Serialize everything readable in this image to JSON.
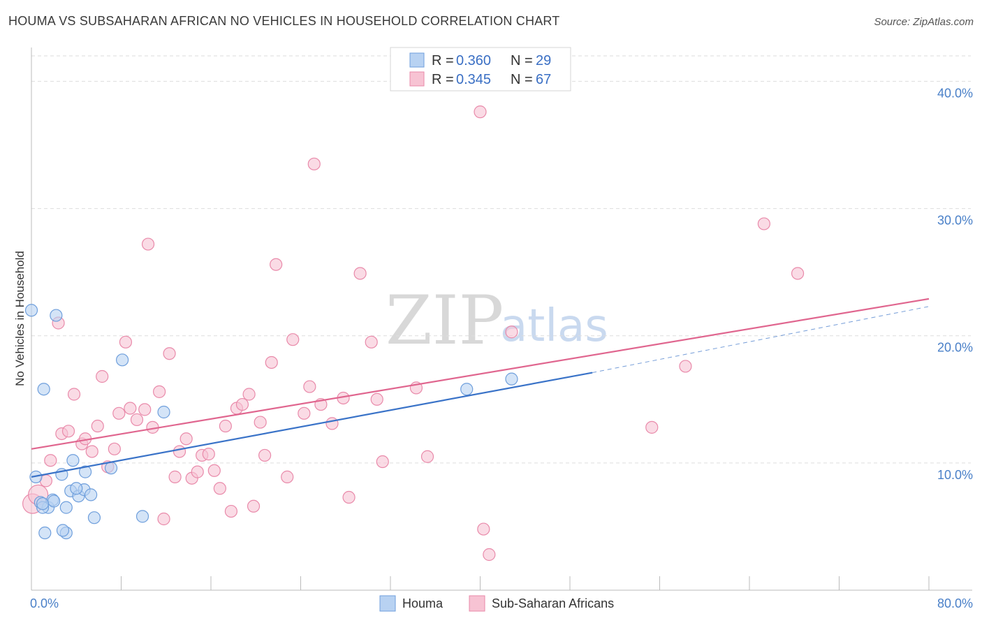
{
  "title": "HOUMA VS SUBSAHARAN AFRICAN NO VEHICLES IN HOUSEHOLD CORRELATION CHART",
  "source": "Source: ZipAtlas.com",
  "watermark": {
    "zip": "ZIP",
    "atlas": "atlas"
  },
  "colors": {
    "houma_fill": "#b8d2f2",
    "houma_stroke": "#6f9fdc",
    "houma_line": "#3a73c8",
    "ssa_fill": "#f7c3d3",
    "ssa_stroke": "#e98aaa",
    "ssa_line": "#e0668f",
    "grid": "#dddddd",
    "tick_label": "#4a80c8"
  },
  "legend_top": {
    "rows": [
      {
        "r_label": "R =",
        "r_value": "0.360",
        "n_label": "N =",
        "n_value": "29"
      },
      {
        "r_label": "R =",
        "r_value": "0.345",
        "n_label": "N =",
        "n_value": "67"
      }
    ]
  },
  "chart_data": {
    "type": "scatter",
    "title": "HOUMA VS SUBSAHARAN AFRICAN NO VEHICLES IN HOUSEHOLD CORRELATION CHART",
    "xlabel": "",
    "ylabel": "No Vehicles in Household",
    "xlim": [
      0,
      80
    ],
    "ylim": [
      0,
      42
    ],
    "x_tick_labels": [
      "0.0%",
      "80.0%"
    ],
    "y_ticks": [
      10,
      20,
      30,
      40
    ],
    "y_tick_labels": [
      "10.0%",
      "20.0%",
      "30.0%",
      "40.0%"
    ],
    "grid": true,
    "legend_placement": "top-center",
    "series": [
      {
        "name": "Houma",
        "points": [
          [
            0.0,
            22.0
          ],
          [
            0.4,
            8.9
          ],
          [
            1.1,
            15.8
          ],
          [
            2.2,
            21.6
          ],
          [
            2.7,
            9.1
          ],
          [
            3.7,
            10.2
          ],
          [
            4.8,
            9.3
          ],
          [
            8.1,
            18.1
          ],
          [
            11.8,
            14.0
          ],
          [
            1.2,
            4.5
          ],
          [
            3.1,
            4.5
          ],
          [
            2.8,
            4.7
          ],
          [
            5.6,
            5.7
          ],
          [
            9.9,
            5.8
          ],
          [
            0.8,
            6.9
          ],
          [
            1.5,
            6.5
          ],
          [
            1.9,
            7.1
          ],
          [
            3.1,
            6.5
          ],
          [
            3.5,
            7.8
          ],
          [
            4.2,
            7.4
          ],
          [
            4.7,
            7.9
          ],
          [
            5.3,
            7.5
          ],
          [
            4.0,
            8.0
          ],
          [
            7.1,
            9.6
          ],
          [
            1.0,
            6.5
          ],
          [
            2.0,
            7.0
          ],
          [
            38.8,
            15.8
          ],
          [
            42.8,
            16.6
          ],
          [
            1.0,
            6.8
          ]
        ]
      },
      {
        "name": "Sub-Saharan Africans",
        "points": [
          [
            0.1,
            6.8
          ],
          [
            0.6,
            7.5
          ],
          [
            1.3,
            8.6
          ],
          [
            1.7,
            10.2
          ],
          [
            2.4,
            21.0
          ],
          [
            2.7,
            12.3
          ],
          [
            3.3,
            12.5
          ],
          [
            3.8,
            15.4
          ],
          [
            4.5,
            11.5
          ],
          [
            4.8,
            11.9
          ],
          [
            5.4,
            10.9
          ],
          [
            5.9,
            12.9
          ],
          [
            6.3,
            16.8
          ],
          [
            6.8,
            9.7
          ],
          [
            7.4,
            11.1
          ],
          [
            7.8,
            13.9
          ],
          [
            8.4,
            19.5
          ],
          [
            8.8,
            14.3
          ],
          [
            9.4,
            13.4
          ],
          [
            10.1,
            14.2
          ],
          [
            10.4,
            27.2
          ],
          [
            10.8,
            12.8
          ],
          [
            11.4,
            15.6
          ],
          [
            11.8,
            5.6
          ],
          [
            12.3,
            18.6
          ],
          [
            12.8,
            8.9
          ],
          [
            13.2,
            10.9
          ],
          [
            13.8,
            11.9
          ],
          [
            14.3,
            8.8
          ],
          [
            14.8,
            9.3
          ],
          [
            15.2,
            10.6
          ],
          [
            15.8,
            10.7
          ],
          [
            16.3,
            9.4
          ],
          [
            16.8,
            8.0
          ],
          [
            17.3,
            12.9
          ],
          [
            17.8,
            6.2
          ],
          [
            18.3,
            14.3
          ],
          [
            18.8,
            14.6
          ],
          [
            19.4,
            15.4
          ],
          [
            19.8,
            6.6
          ],
          [
            20.4,
            13.2
          ],
          [
            20.8,
            10.6
          ],
          [
            21.4,
            17.9
          ],
          [
            21.8,
            25.6
          ],
          [
            22.8,
            8.9
          ],
          [
            23.3,
            19.7
          ],
          [
            24.3,
            13.9
          ],
          [
            24.8,
            16.0
          ],
          [
            25.2,
            33.5
          ],
          [
            25.8,
            14.6
          ],
          [
            26.8,
            13.1
          ],
          [
            27.8,
            15.1
          ],
          [
            28.3,
            7.3
          ],
          [
            29.3,
            24.9
          ],
          [
            30.3,
            19.5
          ],
          [
            30.8,
            15.0
          ],
          [
            31.3,
            10.1
          ],
          [
            34.3,
            15.9
          ],
          [
            35.3,
            10.5
          ],
          [
            40.0,
            37.6
          ],
          [
            40.3,
            4.8
          ],
          [
            40.8,
            2.8
          ],
          [
            42.8,
            20.3
          ],
          [
            55.3,
            12.8
          ],
          [
            58.3,
            17.6
          ],
          [
            65.3,
            28.8
          ],
          [
            68.3,
            24.9
          ]
        ]
      }
    ],
    "trendlines": [
      {
        "series": "Houma",
        "x": [
          0,
          50
        ],
        "y": [
          8.9,
          17.1
        ],
        "dashed_extension_to_x": 80,
        "dashed_extension_y": 22.3
      },
      {
        "series": "Sub-Saharan Africans",
        "x": [
          0,
          80
        ],
        "y": [
          11.1,
          22.9
        ]
      }
    ]
  },
  "legend_bottom": [
    {
      "label": "Houma"
    },
    {
      "label": "Sub-Saharan Africans"
    }
  ]
}
